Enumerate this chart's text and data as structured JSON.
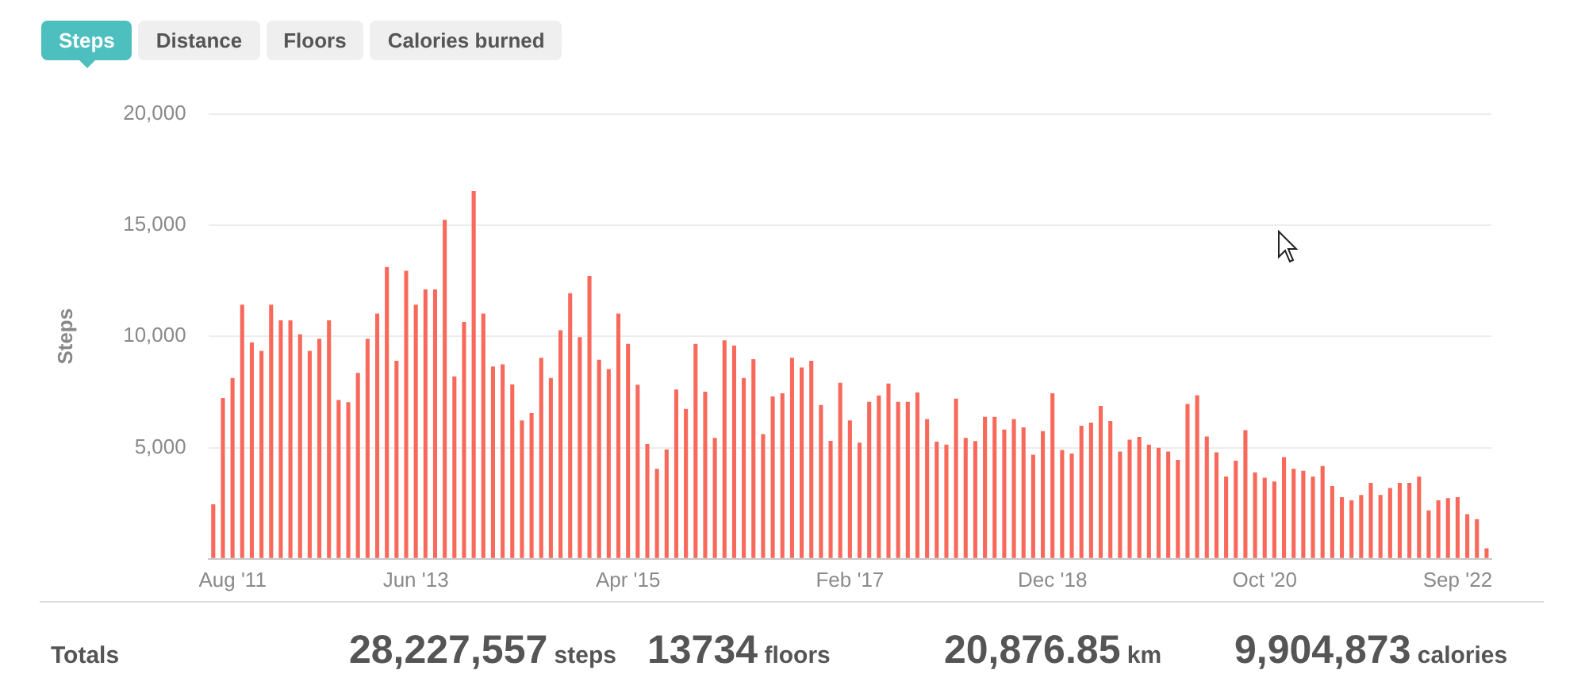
{
  "chart_data": {
    "type": "bar",
    "ylabel": "Steps",
    "categories": [
      null,
      null,
      "Aug '11",
      null,
      null,
      null,
      null,
      null,
      null,
      null,
      null,
      null,
      null,
      null,
      null,
      null,
      null,
      null,
      null,
      null,
      null,
      "Jun '13",
      null,
      null,
      null,
      null,
      null,
      null,
      null,
      null,
      null,
      null,
      null,
      null,
      null,
      null,
      null,
      null,
      null,
      null,
      null,
      null,
      null,
      "Apr '15",
      null,
      null,
      null,
      null,
      null,
      null,
      null,
      null,
      null,
      null,
      null,
      null,
      null,
      null,
      null,
      null,
      null,
      null,
      null,
      null,
      null,
      null,
      "Feb '17",
      null,
      null,
      null,
      null,
      null,
      null,
      null,
      null,
      null,
      null,
      null,
      null,
      null,
      null,
      null,
      null,
      null,
      null,
      null,
      null,
      "Dec '18",
      null,
      null,
      null,
      null,
      null,
      null,
      null,
      null,
      null,
      null,
      null,
      null,
      null,
      null,
      null,
      null,
      null,
      null,
      null,
      null,
      null,
      "Oct '20",
      null,
      null,
      null,
      null,
      null,
      null,
      null,
      null,
      null,
      null,
      null,
      null,
      null,
      null,
      null,
      null,
      null,
      null,
      null,
      "Sep '22",
      null,
      null,
      null
    ],
    "values": [
      2450,
      7230,
      8130,
      11420,
      9730,
      9350,
      11420,
      10720,
      10720,
      10100,
      9350,
      9890,
      10720,
      7140,
      7040,
      8360,
      9890,
      11020,
      13120,
      8900,
      12950,
      11420,
      12110,
      12110,
      15240,
      8200,
      10650,
      16530,
      11020,
      8640,
      8740,
      7840,
      6220,
      6550,
      9040,
      8130,
      10270,
      11940,
      9960,
      12720,
      8950,
      8530,
      11020,
      9660,
      7820,
      5160,
      4050,
      4920,
      7610,
      6740,
      9660,
      7510,
      5440,
      9820,
      9590,
      8130,
      8970,
      5610,
      7300,
      7440,
      9040,
      8600,
      8900,
      6920,
      5300,
      7910,
      6220,
      5220,
      7060,
      7340,
      7880,
      7060,
      7060,
      7480,
      6280,
      5270,
      5130,
      7200,
      5440,
      5290,
      6380,
      6380,
      5810,
      6280,
      5910,
      4680,
      5740,
      7440,
      4890,
      4730,
      5980,
      6120,
      6870,
      6190,
      4820,
      5360,
      5480,
      5130,
      4990,
      4820,
      4450,
      6960,
      7350,
      5500,
      4790,
      3700,
      4410,
      5780,
      3890,
      3650,
      3480,
      4570,
      4050,
      3960,
      3700,
      4170,
      3270,
      2770,
      2630,
      2870,
      3410,
      2870,
      3180,
      3410,
      3410,
      3700,
      2180,
      2630,
      2730,
      2770,
      2010,
      1780,
      470
    ],
    "color": "#f8695b",
    "ylim": [
      0,
      20000
    ],
    "yticks": [
      {
        "value": 0,
        "label": null
      },
      {
        "value": 5000,
        "label": "5,000"
      },
      {
        "value": 10000,
        "label": "10,000"
      },
      {
        "value": 15000,
        "label": "15,000"
      },
      {
        "value": 20000,
        "label": "20,000"
      }
    ],
    "grid": "y",
    "annotations": [
      "Steps",
      "Distance",
      "Floors",
      "Calories burned",
      "Totals",
      "28,227,557 steps",
      "13734 floors",
      "20,876.85 km",
      "9,904,873 calories"
    ]
  }
}
